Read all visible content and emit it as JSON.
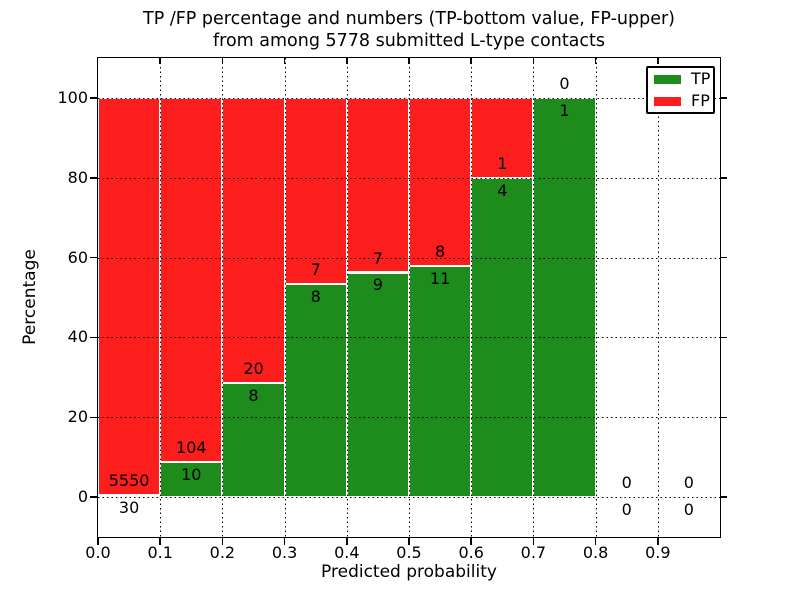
{
  "chart_data": {
    "type": "bar",
    "stacked": true,
    "title": "TP /FP percentage and numbers (TP-bottom value, FP-upper)\nfrom among 5778 submitted L-type contacts",
    "title_line1": "TP /FP percentage and numbers (TP-bottom value, FP-upper)",
    "title_line2": "from among 5778 submitted L-type contacts",
    "xlabel": "Predicted probability",
    "ylabel": "Percentage",
    "total_submitted": 5778,
    "xlim": [
      0.0,
      1.0
    ],
    "ylim": [
      -10,
      110
    ],
    "x_ticks": [
      "0.0",
      "0.1",
      "0.2",
      "0.3",
      "0.4",
      "0.5",
      "0.6",
      "0.7",
      "0.8",
      "0.9"
    ],
    "y_ticks": [
      "0",
      "20",
      "40",
      "60",
      "80",
      "100"
    ],
    "grid": "dotted",
    "legend_position": "upper right",
    "bin_width": 0.1,
    "series": [
      {
        "name": "TP",
        "color": "#1d8c1d",
        "counts": [
          30,
          10,
          8,
          8,
          9,
          11,
          4,
          1,
          0,
          0
        ]
      },
      {
        "name": "FP",
        "color": "#fc1d1d",
        "counts": [
          5550,
          104,
          20,
          7,
          7,
          8,
          1,
          0,
          0,
          0
        ]
      }
    ],
    "bins": [
      {
        "x_start": 0.0,
        "tp": 30,
        "fp": 5550,
        "tp_pct": 0.54
      },
      {
        "x_start": 0.1,
        "tp": 10,
        "fp": 104,
        "tp_pct": 8.77
      },
      {
        "x_start": 0.2,
        "tp": 8,
        "fp": 20,
        "tp_pct": 28.57
      },
      {
        "x_start": 0.3,
        "tp": 8,
        "fp": 7,
        "tp_pct": 53.33
      },
      {
        "x_start": 0.4,
        "tp": 9,
        "fp": 7,
        "tp_pct": 56.25
      },
      {
        "x_start": 0.5,
        "tp": 11,
        "fp": 8,
        "tp_pct": 57.89
      },
      {
        "x_start": 0.6,
        "tp": 4,
        "fp": 1,
        "tp_pct": 80.0
      },
      {
        "x_start": 0.7,
        "tp": 1,
        "fp": 0,
        "tp_pct": 100.0
      },
      {
        "x_start": 0.8,
        "tp": 0,
        "fp": 0,
        "tp_pct": 0.0
      },
      {
        "x_start": 0.9,
        "tp": 0,
        "fp": 0,
        "tp_pct": 0.0
      }
    ],
    "legend": [
      {
        "label": "TP",
        "color": "#1d8c1d"
      },
      {
        "label": "FP",
        "color": "#fc1d1d"
      }
    ],
    "bar_edge_color": "#ffffff",
    "grid_color": "#000000"
  }
}
